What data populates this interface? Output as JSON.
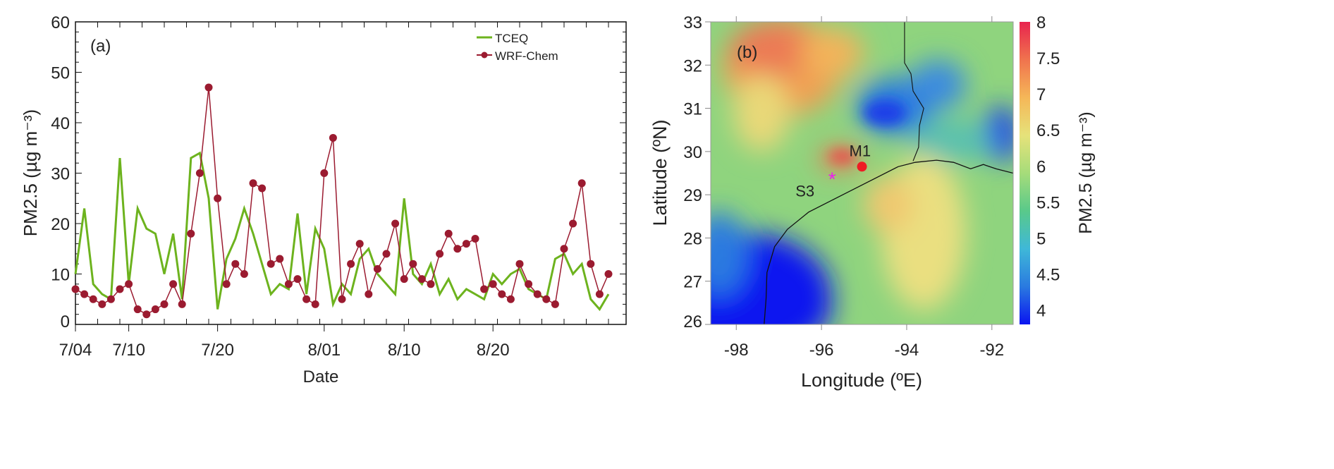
{
  "chart_data": [
    {
      "type": "line",
      "panel_label": "(a)",
      "xlabel": "Date",
      "ylabel": "PM2.5 (µg m⁻³)",
      "ylim": [
        0,
        60
      ],
      "yticks": [
        "0",
        "10",
        "20",
        "30",
        "40",
        "50",
        "60"
      ],
      "xtick_labels": [
        "7/04",
        "7/10",
        "7/20",
        "8/01",
        "8/10",
        "8/20"
      ],
      "legend_position": "top-right",
      "x": [
        "7/04",
        "7/05",
        "7/06",
        "7/07",
        "7/08",
        "7/09",
        "7/10",
        "7/11",
        "7/12",
        "7/13",
        "7/14",
        "7/15",
        "7/16",
        "7/17",
        "7/18",
        "7/19",
        "7/20",
        "7/21",
        "7/22",
        "7/23",
        "7/24",
        "7/25",
        "7/26",
        "7/27",
        "7/28",
        "7/29",
        "7/30",
        "7/31",
        "8/01",
        "8/02",
        "8/03",
        "8/04",
        "8/05",
        "8/06",
        "8/07",
        "8/08",
        "8/09",
        "8/10",
        "8/11",
        "8/12",
        "8/13",
        "8/14",
        "8/15",
        "8/16",
        "8/17",
        "8/18",
        "8/19",
        "8/20",
        "8/21",
        "8/22",
        "8/23",
        "8/24",
        "8/25",
        "8/26",
        "8/27",
        "8/28",
        "8/29",
        "8/30",
        "8/31",
        "9/01",
        "9/02"
      ],
      "series": [
        {
          "name": "TCEQ",
          "color": "#6db31e",
          "values": [
            10,
            23,
            8,
            6,
            5,
            33,
            8,
            23,
            19,
            18,
            10,
            18,
            5,
            33,
            34,
            25,
            3,
            13,
            17,
            23,
            18,
            12,
            6,
            8,
            7,
            22,
            6,
            19,
            15,
            4,
            8,
            6,
            13,
            15,
            10,
            8,
            6,
            25,
            10,
            8,
            12,
            6,
            9,
            5,
            7,
            6,
            5,
            10,
            8,
            10,
            11,
            7,
            6,
            5,
            13,
            14,
            10,
            12,
            5,
            3,
            6
          ]
        },
        {
          "name": "WRF-Chem",
          "color": "#9b1b30",
          "values": [
            7,
            6,
            5,
            4,
            5,
            7,
            8,
            3,
            2,
            3,
            4,
            8,
            4,
            18,
            30,
            47,
            25,
            8,
            12,
            10,
            28,
            27,
            12,
            13,
            8,
            9,
            5,
            4,
            30,
            37,
            5,
            12,
            16,
            6,
            11,
            14,
            20,
            9,
            12,
            9,
            8,
            14,
            18,
            15,
            16,
            17,
            7,
            8,
            6,
            5,
            12,
            8,
            6,
            5,
            4,
            15,
            20,
            28,
            12,
            6,
            10
          ]
        }
      ]
    },
    {
      "type": "heatmap",
      "panel_label": "(b)",
      "xlabel": "Longitude (ºE)",
      "ylabel": "Latitude (ºN)",
      "xlim": [
        -98.6,
        -91.5
      ],
      "ylim": [
        26,
        33
      ],
      "xticks": [
        "-98",
        "-96",
        "-94",
        "-92"
      ],
      "yticks": [
        "26",
        "27",
        "28",
        "29",
        "30",
        "31",
        "32",
        "33"
      ],
      "colorbar_label": "PM2.5 (µg m⁻³)",
      "colorbar_range": [
        3.8,
        8
      ],
      "colorbar_ticks": [
        "4",
        "4.5",
        "5",
        "5.5",
        "6",
        "6.5",
        "7",
        "7.5",
        "8"
      ],
      "colorscale": [
        "#0a14f0",
        "#2a7ae0",
        "#3fb8d8",
        "#59c98a",
        "#a6dc7a",
        "#e6e27a",
        "#f5b758",
        "#f0734e",
        "#e8244e"
      ],
      "markers": [
        {
          "label": "M1",
          "lon": -95.05,
          "lat": 29.65,
          "color": "#ee1c24",
          "symbol": "circle"
        },
        {
          "label": "S3",
          "lon": -95.75,
          "lat": 29.35,
          "color": "#ee1cee",
          "symbol": "asterisk"
        }
      ]
    }
  ]
}
